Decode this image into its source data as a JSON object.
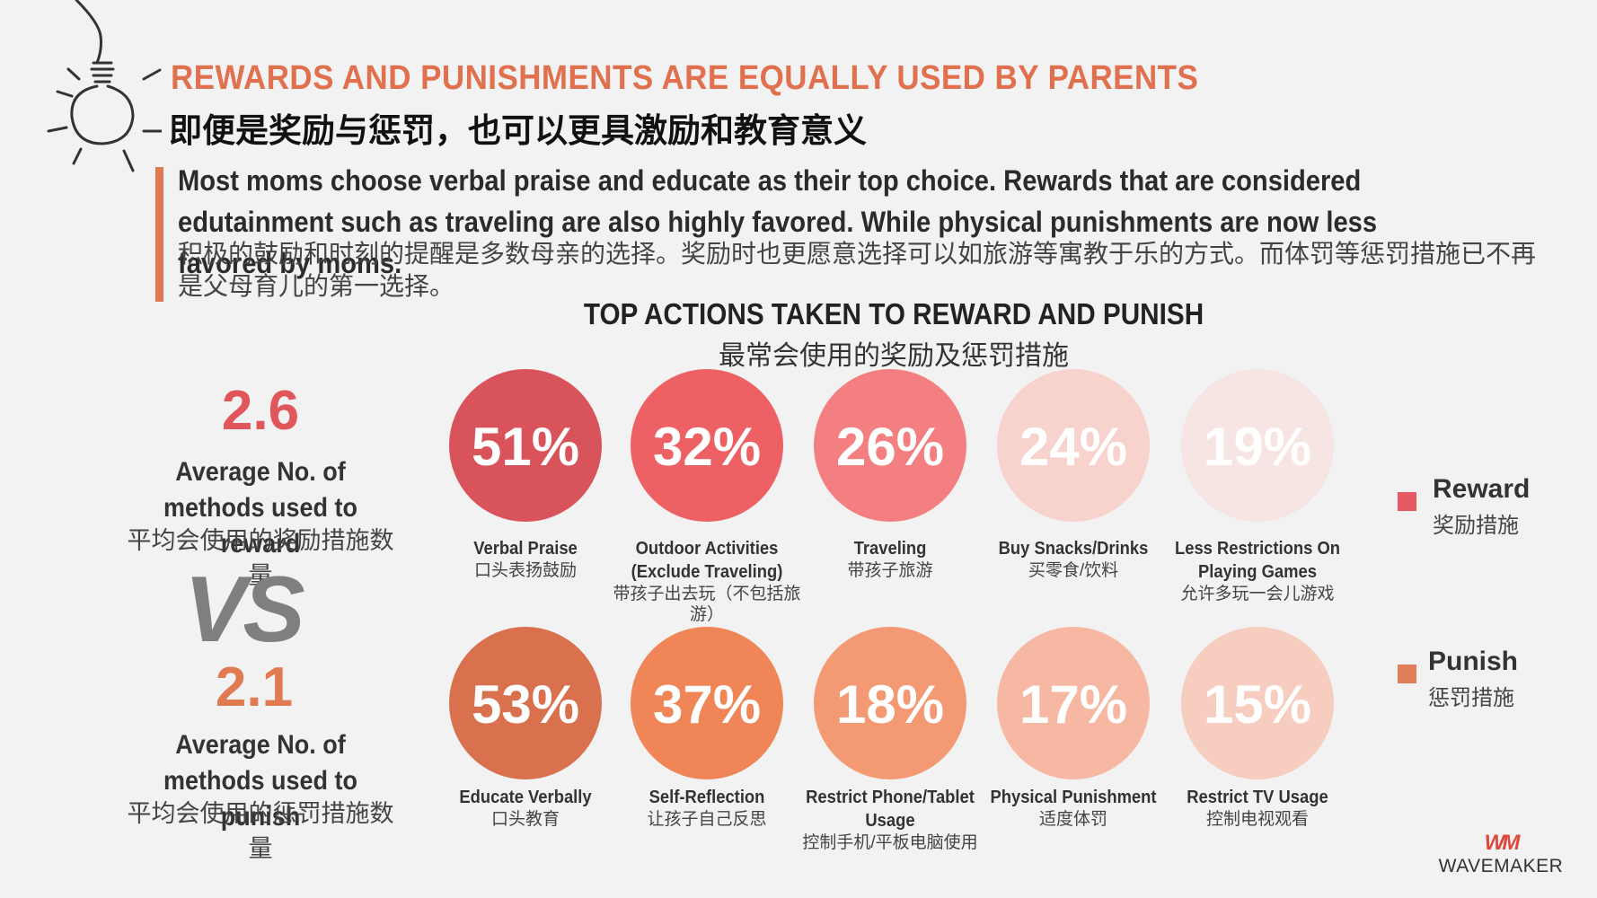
{
  "header": {
    "title_en": "REWARDS AND PUNISHMENTS ARE EQUALLY USED BY PARENTS",
    "title_cn": "即便是奖励与惩罚，也可以更具激励和教育意义",
    "summary_en": "Most moms choose verbal praise and educate as their top choice. Rewards that are considered edutainment such as traveling are also highly favored. While physical punishments are now less favored by moms.",
    "summary_cn": "积极的鼓励和时刻的提醒是多数母亲的选择。奖励时也更愿意选择可以如旅游等寓教于乐的方式。而体罚等惩罚措施已不再是父母育儿的第一选择。"
  },
  "averages": {
    "reward": {
      "value": "2.6",
      "label_en": "Average No. of methods used to reward",
      "label_cn": "平均会使用的奖励措施数量",
      "color": "#e0565a"
    },
    "vs": "VS",
    "punish": {
      "value": "2.1",
      "label_en": "Average No. of methods used to punish",
      "label_cn": "平均会使用的惩罚措施数量",
      "color": "#e07a50"
    }
  },
  "legend": {
    "reward": {
      "label_en": "Reward",
      "label_cn": "奖励措施",
      "color": "#e65a64"
    },
    "punish": {
      "label_en": "Punish",
      "label_cn": "惩罚措施",
      "color": "#e07f5a"
    }
  },
  "chart_data": {
    "type": "bubble",
    "title": "TOP ACTIONS TAKEN TO REWARD AND PUNISH",
    "subtitle": "最常会使用的奖励及惩罚措施",
    "unit": "%",
    "series": [
      {
        "name": "Reward",
        "items": [
          {
            "label_en": "Verbal Praise",
            "label_cn": "口头表扬鼓励",
            "value": 51,
            "value_label": "51%",
            "color": "#d9535a"
          },
          {
            "label_en": "Outdoor Activities (Exclude Traveling)",
            "label_cn": "带孩子出去玩（不包括旅游）",
            "value": 32,
            "value_label": "32%",
            "color": "#ed6165"
          },
          {
            "label_en": "Traveling",
            "label_cn": "带孩子旅游",
            "value": 26,
            "value_label": "26%",
            "color": "#f47f80"
          },
          {
            "label_en": "Buy Snacks/Drinks",
            "label_cn": "买零食/饮料",
            "value": 24,
            "value_label": "24%",
            "color": "#f8d2cd"
          },
          {
            "label_en": "Less Restrictions On Playing Games",
            "label_cn": "允许多玩一会儿游戏",
            "value": 19,
            "value_label": "19%",
            "color": "#f7e5e3"
          }
        ]
      },
      {
        "name": "Punish",
        "items": [
          {
            "label_en": "Educate Verbally",
            "label_cn": "口头教育",
            "value": 53,
            "value_label": "53%",
            "color": "#d9704e"
          },
          {
            "label_en": "Self-Reflection",
            "label_cn": "让孩子自己反思",
            "value": 37,
            "value_label": "37%",
            "color": "#f08558"
          },
          {
            "label_en": "Restrict Phone/Tablet Usage",
            "label_cn": "控制手机/平板电脑使用",
            "value": 18,
            "value_label": "18%",
            "color": "#f39974"
          },
          {
            "label_en": "Physical Punishment",
            "label_cn": "适度体罚",
            "value": 17,
            "value_label": "17%",
            "color": "#f6b8a2"
          },
          {
            "label_en": "Restrict TV Usage",
            "label_cn": "控制电视观看",
            "value": 15,
            "value_label": "15%",
            "color": "#f6cdbf"
          }
        ]
      }
    ]
  },
  "brand": {
    "mark": "WM",
    "name": "WAVEMAKER"
  },
  "icons": {
    "bulb": "lightbulb-icon"
  }
}
